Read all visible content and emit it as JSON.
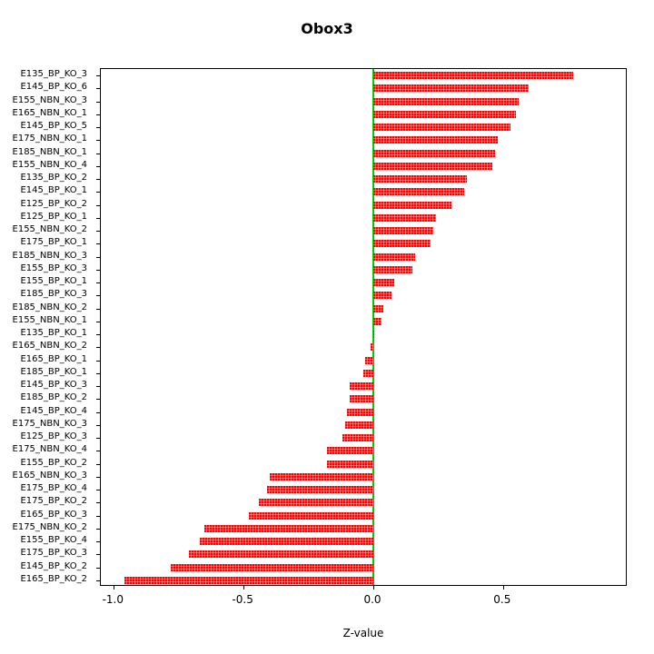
{
  "chart_data": {
    "type": "bar",
    "orientation": "horizontal",
    "title": "Obox3",
    "xlabel": "Z-value",
    "ylabel": "",
    "xlim": [
      -1.05,
      0.98
    ],
    "xticks": [
      -1.0,
      -0.5,
      0.0,
      0.5
    ],
    "xtick_labels": [
      "-1.0",
      "-0.5",
      "0.0",
      "0.5"
    ],
    "grid": false,
    "legend": "none",
    "bar_color": "#ff0000",
    "zero_line_color": "#00cc00",
    "categories": [
      "E135_BP_KO_3",
      "E145_BP_KO_6",
      "E155_NBN_KO_3",
      "E165_NBN_KO_1",
      "E145_BP_KO_5",
      "E175_NBN_KO_1",
      "E185_NBN_KO_1",
      "E155_NBN_KO_4",
      "E135_BP_KO_2",
      "E145_BP_KO_1",
      "E125_BP_KO_2",
      "E125_BP_KO_1",
      "E155_NBN_KO_2",
      "E175_BP_KO_1",
      "E185_NBN_KO_3",
      "E155_BP_KO_3",
      "E155_BP_KO_1",
      "E185_BP_KO_3",
      "E185_NBN_KO_2",
      "E155_NBN_KO_1",
      "E135_BP_KO_1",
      "E165_NBN_KO_2",
      "E165_BP_KO_1",
      "E185_BP_KO_1",
      "E145_BP_KO_3",
      "E185_BP_KO_2",
      "E145_BP_KO_4",
      "E175_NBN_KO_3",
      "E125_BP_KO_3",
      "E175_NBN_KO_4",
      "E155_BP_KO_2",
      "E165_NBN_KO_3",
      "E175_BP_KO_4",
      "E175_BP_KO_2",
      "E165_BP_KO_3",
      "E175_NBN_KO_2",
      "E155_BP_KO_4",
      "E175_BP_KO_3",
      "E145_BP_KO_2",
      "E165_BP_KO_2"
    ],
    "values": [
      0.77,
      0.6,
      0.56,
      0.55,
      0.53,
      0.48,
      0.47,
      0.46,
      0.36,
      0.35,
      0.3,
      0.24,
      0.23,
      0.22,
      0.16,
      0.15,
      0.08,
      0.07,
      0.04,
      0.03,
      0.005,
      -0.01,
      -0.03,
      -0.04,
      -0.09,
      -0.09,
      -0.1,
      -0.11,
      -0.12,
      -0.18,
      -0.18,
      -0.4,
      -0.41,
      -0.44,
      -0.48,
      -0.65,
      -0.67,
      -0.71,
      -0.78,
      -0.96
    ]
  }
}
